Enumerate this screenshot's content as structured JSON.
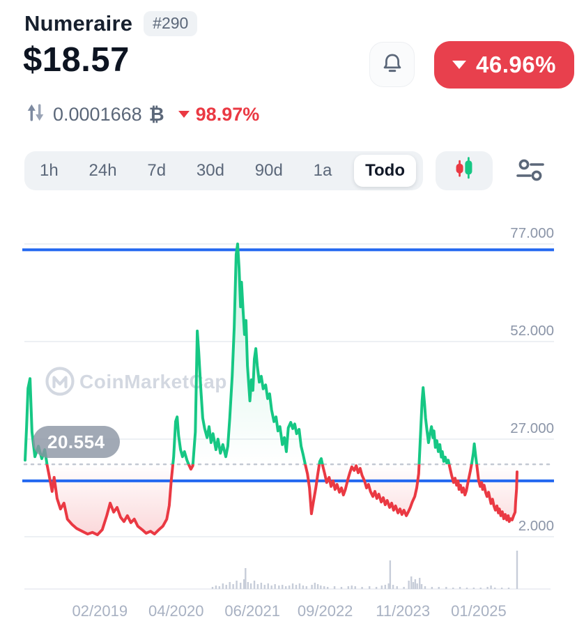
{
  "colors": {
    "green": "#16c784",
    "red": "#ea3943",
    "blue": "#2368f0",
    "grid": "#edf0f4",
    "axis_text": "#8b95a8",
    "x_text": "#a8b1c2",
    "watermark": "#ccd2dc",
    "volume_bar": "#c7cdd9",
    "badge_red": "#e8404d",
    "icon_gray": "#5b6779"
  },
  "header": {
    "coin_name": "Numeraire",
    "rank_badge": "#290",
    "price": "$18.57",
    "change_badge": {
      "direction": "down",
      "value": "46.96%"
    },
    "btc_conversion": {
      "amount": "0.0001668",
      "currency_symbol": "₿",
      "change_direction": "down",
      "change": "98.97%"
    }
  },
  "toolbar": {
    "ranges": [
      "1h",
      "24h",
      "7d",
      "30d",
      "90d",
      "1a",
      "Todo"
    ],
    "selected": "Todo"
  },
  "chart_data": {
    "type": "line",
    "title": "Numeraire price, all-time (Todo)",
    "watermark": "CoinMarketCap",
    "threshold_value": 20.554,
    "threshold_label": "20.554",
    "upper_level_value": 75.5,
    "lower_level_value": 16.3,
    "ylim": [
      2,
      77
    ],
    "grid": true,
    "y_ticks": [
      {
        "value": 77,
        "label": "77.000"
      },
      {
        "value": 52,
        "label": "52.000"
      },
      {
        "value": 27,
        "label": "27.000"
      },
      {
        "value": 2,
        "label": "2.000"
      }
    ],
    "x_ticks": [
      {
        "t": 0.152,
        "label": "02/2019"
      },
      {
        "t": 0.307,
        "label": "04/2020"
      },
      {
        "t": 0.462,
        "label": "06/2021"
      },
      {
        "t": 0.61,
        "label": "09/2022"
      },
      {
        "t": 0.768,
        "label": "11/2023"
      },
      {
        "t": 0.922,
        "label": "01/2025"
      }
    ],
    "points": [
      [
        0,
        21.6
      ],
      [
        0.003,
        30
      ],
      [
        0.006,
        40
      ],
      [
        0.01,
        42.5
      ],
      [
        0.014,
        28.8
      ],
      [
        0.02,
        22.5
      ],
      [
        0.027,
        25.2
      ],
      [
        0.034,
        22
      ],
      [
        0.04,
        24.3
      ],
      [
        0.045,
        20.2
      ],
      [
        0.051,
        16.3
      ],
      [
        0.055,
        13.6
      ],
      [
        0.059,
        17.2
      ],
      [
        0.065,
        11.8
      ],
      [
        0.072,
        9.1
      ],
      [
        0.079,
        10.6
      ],
      [
        0.086,
        6.5
      ],
      [
        0.095,
        5.2
      ],
      [
        0.105,
        4.1
      ],
      [
        0.116,
        3.4
      ],
      [
        0.127,
        2.7
      ],
      [
        0.137,
        3.1
      ],
      [
        0.147,
        2.5
      ],
      [
        0.157,
        3.8
      ],
      [
        0.166,
        7.4
      ],
      [
        0.173,
        10.6
      ],
      [
        0.18,
        8.3
      ],
      [
        0.187,
        9.5
      ],
      [
        0.194,
        7
      ],
      [
        0.201,
        5.9
      ],
      [
        0.208,
        7.4
      ],
      [
        0.215,
        5.6
      ],
      [
        0.222,
        6.5
      ],
      [
        0.229,
        4.7
      ],
      [
        0.238,
        3.8
      ],
      [
        0.246,
        2.9
      ],
      [
        0.255,
        3.4
      ],
      [
        0.263,
        2.7
      ],
      [
        0.272,
        3.8
      ],
      [
        0.28,
        4.7
      ],
      [
        0.288,
        6.5
      ],
      [
        0.293,
        10
      ],
      [
        0.297,
        16.3
      ],
      [
        0.302,
        22.5
      ],
      [
        0.306,
        31.5
      ],
      [
        0.309,
        32.7
      ],
      [
        0.312,
        27.9
      ],
      [
        0.316,
        24.3
      ],
      [
        0.32,
        22.5
      ],
      [
        0.324,
        23.8
      ],
      [
        0.329,
        21.6
      ],
      [
        0.333,
        20.4
      ],
      [
        0.337,
        19.3
      ],
      [
        0.341,
        20.2
      ],
      [
        0.346,
        28.8
      ],
      [
        0.35,
        54.7
      ],
      [
        0.353,
        49.3
      ],
      [
        0.357,
        40.4
      ],
      [
        0.361,
        32.4
      ],
      [
        0.365,
        29.7
      ],
      [
        0.37,
        27.4
      ],
      [
        0.374,
        30.2
      ],
      [
        0.378,
        26.1
      ],
      [
        0.382,
        28.4
      ],
      [
        0.388,
        24.3
      ],
      [
        0.392,
        27
      ],
      [
        0.397,
        23.4
      ],
      [
        0.402,
        25.6
      ],
      [
        0.408,
        22.5
      ],
      [
        0.412,
        25.2
      ],
      [
        0.416,
        32.4
      ],
      [
        0.421,
        43.1
      ],
      [
        0.425,
        55.6
      ],
      [
        0.429,
        74.3
      ],
      [
        0.432,
        77
      ],
      [
        0.435,
        70.8
      ],
      [
        0.438,
        60.9
      ],
      [
        0.44,
        67.2
      ],
      [
        0.443,
        60
      ],
      [
        0.446,
        53.8
      ],
      [
        0.449,
        57.4
      ],
      [
        0.452,
        45.8
      ],
      [
        0.455,
        40.4
      ],
      [
        0.457,
        36.8
      ],
      [
        0.46,
        42.2
      ],
      [
        0.463,
        39.5
      ],
      [
        0.466,
        47.5
      ],
      [
        0.469,
        50.2
      ],
      [
        0.472,
        45.8
      ],
      [
        0.476,
        41.6
      ],
      [
        0.48,
        43.1
      ],
      [
        0.484,
        39.9
      ],
      [
        0.489,
        40.9
      ],
      [
        0.493,
        37.4
      ],
      [
        0.497,
        38.6
      ],
      [
        0.501,
        34.5
      ],
      [
        0.506,
        31.5
      ],
      [
        0.51,
        32.7
      ],
      [
        0.514,
        29.1
      ],
      [
        0.518,
        30.2
      ],
      [
        0.523,
        25.6
      ],
      [
        0.527,
        27.4
      ],
      [
        0.531,
        23.8
      ],
      [
        0.535,
        29.9
      ],
      [
        0.54,
        31.3
      ],
      [
        0.544,
        29.7
      ],
      [
        0.548,
        30.9
      ],
      [
        0.552,
        28.4
      ],
      [
        0.557,
        29.5
      ],
      [
        0.561,
        25.2
      ],
      [
        0.565,
        23.1
      ],
      [
        0.569,
        20.8
      ],
      [
        0.574,
        18.1
      ],
      [
        0.578,
        14.5
      ],
      [
        0.582,
        7.9
      ],
      [
        0.586,
        10.9
      ],
      [
        0.591,
        14.5
      ],
      [
        0.595,
        18.1
      ],
      [
        0.599,
        21.3
      ],
      [
        0.602,
        22
      ],
      [
        0.605,
        20.2
      ],
      [
        0.609,
        18.1
      ],
      [
        0.613,
        15.9
      ],
      [
        0.618,
        17.2
      ],
      [
        0.622,
        14.9
      ],
      [
        0.626,
        16.3
      ],
      [
        0.63,
        14.1
      ],
      [
        0.634,
        15.4
      ],
      [
        0.639,
        13.4
      ],
      [
        0.643,
        14.5
      ],
      [
        0.647,
        12.7
      ],
      [
        0.651,
        14.1
      ],
      [
        0.656,
        16.6
      ],
      [
        0.66,
        18.4
      ],
      [
        0.664,
        19.9
      ],
      [
        0.669,
        19
      ],
      [
        0.673,
        20.2
      ],
      [
        0.677,
        18.4
      ],
      [
        0.681,
        19.5
      ],
      [
        0.685,
        17.7
      ],
      [
        0.69,
        16.3
      ],
      [
        0.694,
        14.5
      ],
      [
        0.698,
        15.4
      ],
      [
        0.702,
        13.6
      ],
      [
        0.707,
        12.3
      ],
      [
        0.711,
        13.6
      ],
      [
        0.715,
        11.8
      ],
      [
        0.719,
        12.9
      ],
      [
        0.724,
        10.9
      ],
      [
        0.728,
        12
      ],
      [
        0.732,
        10.2
      ],
      [
        0.736,
        11.3
      ],
      [
        0.741,
        9.5
      ],
      [
        0.745,
        10.6
      ],
      [
        0.749,
        8.8
      ],
      [
        0.753,
        9.9
      ],
      [
        0.758,
        8.1
      ],
      [
        0.762,
        9.1
      ],
      [
        0.766,
        7.7
      ],
      [
        0.77,
        8.8
      ],
      [
        0.775,
        7.4
      ],
      [
        0.779,
        8.4
      ],
      [
        0.783,
        9.5
      ],
      [
        0.787,
        10.9
      ],
      [
        0.792,
        12.3
      ],
      [
        0.796,
        14.5
      ],
      [
        0.8,
        18.1
      ],
      [
        0.804,
        28.8
      ],
      [
        0.807,
        36.8
      ],
      [
        0.809,
        40.2
      ],
      [
        0.812,
        35.9
      ],
      [
        0.814,
        32.4
      ],
      [
        0.817,
        29.1
      ],
      [
        0.82,
        26.1
      ],
      [
        0.823,
        28.4
      ],
      [
        0.826,
        30.2
      ],
      [
        0.829,
        27.4
      ],
      [
        0.831,
        29.1
      ],
      [
        0.834,
        24.9
      ],
      [
        0.837,
        26.6
      ],
      [
        0.84,
        23.8
      ],
      [
        0.843,
        25.6
      ],
      [
        0.846,
        22.4
      ],
      [
        0.848,
        23.8
      ],
      [
        0.851,
        21.3
      ],
      [
        0.854,
        22.4
      ],
      [
        0.857,
        20.9
      ],
      [
        0.86,
        21.6
      ],
      [
        0.863,
        19.9
      ],
      [
        0.867,
        17.7
      ],
      [
        0.871,
        15.9
      ],
      [
        0.874,
        17
      ],
      [
        0.877,
        15.2
      ],
      [
        0.88,
        16.3
      ],
      [
        0.882,
        14.1
      ],
      [
        0.885,
        15.2
      ],
      [
        0.888,
        13.4
      ],
      [
        0.891,
        14.5
      ],
      [
        0.894,
        12.7
      ],
      [
        0.897,
        13.8
      ],
      [
        0.899,
        15.2
      ],
      [
        0.902,
        17
      ],
      [
        0.905,
        18.8
      ],
      [
        0.908,
        20.8
      ],
      [
        0.911,
        23.4
      ],
      [
        0.913,
        25.8
      ],
      [
        0.916,
        22.5
      ],
      [
        0.919,
        19.5
      ],
      [
        0.922,
        16.3
      ],
      [
        0.925,
        14.9
      ],
      [
        0.928,
        15.9
      ],
      [
        0.93,
        14.1
      ],
      [
        0.933,
        15.2
      ],
      [
        0.936,
        13.4
      ],
      [
        0.939,
        12.3
      ],
      [
        0.942,
        13.4
      ],
      [
        0.945,
        11.6
      ],
      [
        0.947,
        10.5
      ],
      [
        0.95,
        11.6
      ],
      [
        0.953,
        9.9
      ],
      [
        0.956,
        8.8
      ],
      [
        0.959,
        9.9
      ],
      [
        0.962,
        8.1
      ],
      [
        0.964,
        9.1
      ],
      [
        0.967,
        7.4
      ],
      [
        0.97,
        8.4
      ],
      [
        0.973,
        6.6
      ],
      [
        0.976,
        7.7
      ],
      [
        0.979,
        6.3
      ],
      [
        0.982,
        7.4
      ],
      [
        0.984,
        5.9
      ],
      [
        0.987,
        6.6
      ],
      [
        0.99,
        6.3
      ],
      [
        0.993,
        7.4
      ],
      [
        0.996,
        8.3
      ],
      [
        0.997,
        10.9
      ],
      [
        0.999,
        14.3
      ],
      [
        1,
        18.6
      ]
    ],
    "volume_bars": [
      [
        0.381,
        3
      ],
      [
        0.388,
        5
      ],
      [
        0.395,
        4
      ],
      [
        0.402,
        8
      ],
      [
        0.409,
        6
      ],
      [
        0.416,
        10
      ],
      [
        0.423,
        7
      ],
      [
        0.43,
        12
      ],
      [
        0.438,
        9
      ],
      [
        0.445,
        14
      ],
      [
        0.448,
        30
      ],
      [
        0.453,
        10
      ],
      [
        0.459,
        8
      ],
      [
        0.466,
        12
      ],
      [
        0.473,
        7
      ],
      [
        0.48,
        9
      ],
      [
        0.487,
        6
      ],
      [
        0.494,
        8
      ],
      [
        0.501,
        5
      ],
      [
        0.508,
        7
      ],
      [
        0.516,
        5
      ],
      [
        0.523,
        6
      ],
      [
        0.53,
        4
      ],
      [
        0.537,
        5
      ],
      [
        0.544,
        8
      ],
      [
        0.551,
        6
      ],
      [
        0.558,
        8
      ],
      [
        0.565,
        5
      ],
      [
        0.572,
        4
      ],
      [
        0.583,
        6
      ],
      [
        0.589,
        9
      ],
      [
        0.595,
        7
      ],
      [
        0.601,
        5
      ],
      [
        0.608,
        4
      ],
      [
        0.615,
        3
      ],
      [
        0.629,
        4
      ],
      [
        0.643,
        3
      ],
      [
        0.657,
        4
      ],
      [
        0.664,
        5
      ],
      [
        0.671,
        4
      ],
      [
        0.685,
        3
      ],
      [
        0.7,
        4
      ],
      [
        0.714,
        3
      ],
      [
        0.725,
        5
      ],
      [
        0.732,
        6
      ],
      [
        0.739,
        8
      ],
      [
        0.742,
        41
      ],
      [
        0.748,
        6
      ],
      [
        0.756,
        4
      ],
      [
        0.77,
        3
      ],
      [
        0.78,
        12
      ],
      [
        0.785,
        18
      ],
      [
        0.789,
        10
      ],
      [
        0.793,
        14
      ],
      [
        0.797,
        8
      ],
      [
        0.802,
        16
      ],
      [
        0.806,
        7
      ],
      [
        0.813,
        4
      ],
      [
        0.827,
        3
      ],
      [
        0.841,
        3
      ],
      [
        0.856,
        3
      ],
      [
        0.87,
        2
      ],
      [
        0.884,
        3
      ],
      [
        0.898,
        2
      ],
      [
        0.912,
        2
      ],
      [
        0.926,
        2
      ],
      [
        0.94,
        3
      ],
      [
        0.947,
        5
      ],
      [
        0.955,
        2
      ],
      [
        0.969,
        2
      ],
      [
        0.983,
        2
      ],
      [
        1,
        55
      ]
    ]
  }
}
